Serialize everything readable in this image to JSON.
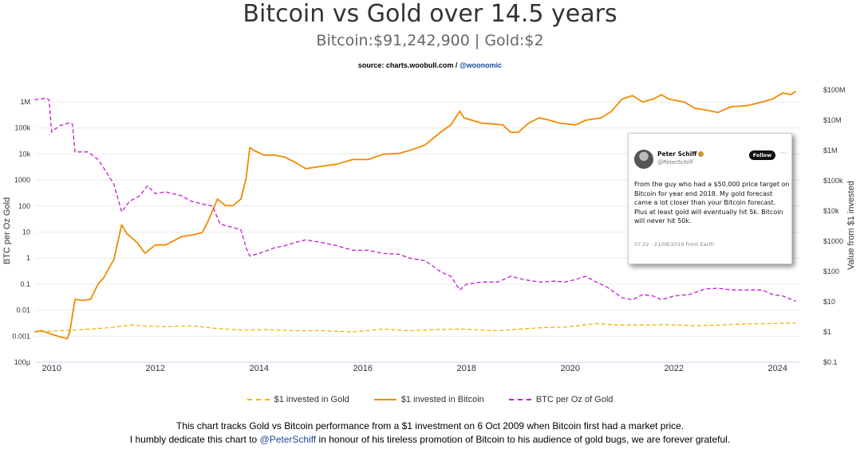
{
  "header": {
    "title": "Bitcoin vs Gold over 14.5 years",
    "subtitle": "Bitcoin:$91,242,900 | Gold:$2",
    "source_prefix": "source: charts.woobull.com / ",
    "source_handle": "@woonomic"
  },
  "chart_data": {
    "type": "line",
    "x_range": [
      2009.75,
      2024.55
    ],
    "x_ticks": [
      2010,
      2012,
      2014,
      2016,
      2018,
      2020,
      2022,
      2024
    ],
    "left_axis": {
      "label": "BTC per Oz Gold",
      "scale": "log",
      "range": [
        0.0001,
        1000000
      ],
      "ticks": [
        {
          "v": 1000000,
          "label": "1M"
        },
        {
          "v": 100000,
          "label": "100k"
        },
        {
          "v": 10000,
          "label": "10k"
        },
        {
          "v": 1000,
          "label": "1000"
        },
        {
          "v": 100,
          "label": "100"
        },
        {
          "v": 10,
          "label": "10"
        },
        {
          "v": 1,
          "label": "1"
        },
        {
          "v": 0.1,
          "label": "0.1"
        },
        {
          "v": 0.01,
          "label": "0.01"
        },
        {
          "v": 0.001,
          "label": "0.001"
        },
        {
          "v": 0.0001,
          "label": "100µ"
        }
      ]
    },
    "right_axis": {
      "label": "Value from $1 invested",
      "scale": "log",
      "range": [
        0.1,
        100000000
      ],
      "ticks": [
        {
          "v": 100000000,
          "label": "$100M"
        },
        {
          "v": 10000000,
          "label": "$10M"
        },
        {
          "v": 1000000,
          "label": "$1M"
        },
        {
          "v": 100000,
          "label": "$100k"
        },
        {
          "v": 10000,
          "label": "$10k"
        },
        {
          "v": 1000,
          "label": "$1000"
        },
        {
          "v": 100,
          "label": "$100"
        },
        {
          "v": 10,
          "label": "$10"
        },
        {
          "v": 1,
          "label": "$1"
        },
        {
          "v": 0.1,
          "label": "$0.1"
        }
      ]
    },
    "series": [
      {
        "name": "$1 invested in Gold",
        "axis": "right",
        "color": "#f0b400",
        "points": [
          [
            2009.77,
            1.0
          ],
          [
            2010.0,
            1.05
          ],
          [
            2010.5,
            1.15
          ],
          [
            2011.0,
            1.3
          ],
          [
            2011.3,
            1.45
          ],
          [
            2011.65,
            1.7
          ],
          [
            2011.9,
            1.55
          ],
          [
            2012.3,
            1.5
          ],
          [
            2012.8,
            1.6
          ],
          [
            2013.3,
            1.3
          ],
          [
            2013.8,
            1.15
          ],
          [
            2014.2,
            1.2
          ],
          [
            2014.8,
            1.1
          ],
          [
            2015.3,
            1.1
          ],
          [
            2015.9,
            1.0
          ],
          [
            2016.5,
            1.25
          ],
          [
            2017.0,
            1.1
          ],
          [
            2017.5,
            1.2
          ],
          [
            2018.0,
            1.25
          ],
          [
            2018.7,
            1.1
          ],
          [
            2019.0,
            1.2
          ],
          [
            2019.6,
            1.4
          ],
          [
            2020.0,
            1.45
          ],
          [
            2020.6,
            1.9
          ],
          [
            2021.0,
            1.7
          ],
          [
            2021.5,
            1.7
          ],
          [
            2022.0,
            1.75
          ],
          [
            2022.5,
            1.6
          ],
          [
            2023.0,
            1.7
          ],
          [
            2023.5,
            1.85
          ],
          [
            2024.0,
            1.9
          ],
          [
            2024.45,
            2.0
          ]
        ]
      },
      {
        "name": "$1 invested in Bitcoin",
        "axis": "right",
        "color": "#f08a00",
        "points": [
          [
            2009.77,
            1.0
          ],
          [
            2009.9,
            1.1
          ],
          [
            2010.05,
            0.9
          ],
          [
            2010.25,
            0.7
          ],
          [
            2010.4,
            0.6
          ],
          [
            2010.45,
            1.0
          ],
          [
            2010.55,
            12
          ],
          [
            2010.7,
            11
          ],
          [
            2010.85,
            12
          ],
          [
            2011.0,
            40
          ],
          [
            2011.1,
            60
          ],
          [
            2011.3,
            250
          ],
          [
            2011.45,
            3500
          ],
          [
            2011.55,
            1800
          ],
          [
            2011.75,
            900
          ],
          [
            2011.9,
            400
          ],
          [
            2012.1,
            750
          ],
          [
            2012.3,
            750
          ],
          [
            2012.6,
            1400
          ],
          [
            2012.8,
            1600
          ],
          [
            2013.0,
            1900
          ],
          [
            2013.1,
            4000
          ],
          [
            2013.3,
            25000
          ],
          [
            2013.45,
            15000
          ],
          [
            2013.6,
            15000
          ],
          [
            2013.75,
            25000
          ],
          [
            2013.85,
            120000
          ],
          [
            2013.92,
            1250000
          ],
          [
            2014.0,
            1000000
          ],
          [
            2014.2,
            700000
          ],
          [
            2014.4,
            700000
          ],
          [
            2014.6,
            600000
          ],
          [
            2014.8,
            400000
          ],
          [
            2015.0,
            250000
          ],
          [
            2015.3,
            300000
          ],
          [
            2015.6,
            350000
          ],
          [
            2015.9,
            500000
          ],
          [
            2016.2,
            500000
          ],
          [
            2016.5,
            750000
          ],
          [
            2016.8,
            800000
          ],
          [
            2017.0,
            1000000
          ],
          [
            2017.3,
            1500000
          ],
          [
            2017.6,
            4000000
          ],
          [
            2017.8,
            7000000
          ],
          [
            2017.97,
            20000000
          ],
          [
            2018.05,
            12000000
          ],
          [
            2018.2,
            10000000
          ],
          [
            2018.4,
            8000000
          ],
          [
            2018.6,
            7500000
          ],
          [
            2018.8,
            7000000
          ],
          [
            2018.95,
            4000000
          ],
          [
            2019.1,
            4000000
          ],
          [
            2019.3,
            8000000
          ],
          [
            2019.5,
            12000000
          ],
          [
            2019.7,
            10000000
          ],
          [
            2019.9,
            8000000
          ],
          [
            2020.2,
            7000000
          ],
          [
            2020.4,
            10000000
          ],
          [
            2020.7,
            12000000
          ],
          [
            2020.9,
            20000000
          ],
          [
            2021.1,
            50000000
          ],
          [
            2021.3,
            65000000
          ],
          [
            2021.5,
            40000000
          ],
          [
            2021.7,
            50000000
          ],
          [
            2021.86,
            70000000
          ],
          [
            2022.0,
            50000000
          ],
          [
            2022.3,
            40000000
          ],
          [
            2022.5,
            25000000
          ],
          [
            2022.7,
            22000000
          ],
          [
            2022.95,
            18000000
          ],
          [
            2023.2,
            28000000
          ],
          [
            2023.5,
            30000000
          ],
          [
            2023.8,
            40000000
          ],
          [
            2024.0,
            50000000
          ],
          [
            2024.2,
            80000000
          ],
          [
            2024.35,
            70000000
          ],
          [
            2024.45,
            91000000
          ]
        ]
      },
      {
        "name": "BTC per Oz of Gold",
        "axis": "left",
        "color": "#c21ad0",
        "points": [
          [
            2009.77,
            1200000
          ],
          [
            2009.9,
            1300000
          ],
          [
            2010.0,
            1400000
          ],
          [
            2010.05,
            1200000
          ],
          [
            2010.1,
            70000
          ],
          [
            2010.25,
            120000
          ],
          [
            2010.45,
            160000
          ],
          [
            2010.5,
            140000
          ],
          [
            2010.55,
            12000
          ],
          [
            2010.8,
            12000
          ],
          [
            2011.0,
            6000
          ],
          [
            2011.1,
            3000
          ],
          [
            2011.3,
            700
          ],
          [
            2011.45,
            60
          ],
          [
            2011.6,
            150
          ],
          [
            2011.8,
            250
          ],
          [
            2011.95,
            600
          ],
          [
            2012.1,
            300
          ],
          [
            2012.3,
            350
          ],
          [
            2012.6,
            250
          ],
          [
            2012.8,
            150
          ],
          [
            2013.0,
            120
          ],
          [
            2013.2,
            100
          ],
          [
            2013.35,
            20
          ],
          [
            2013.6,
            15
          ],
          [
            2013.75,
            12
          ],
          [
            2013.85,
            2.5
          ],
          [
            2013.92,
            1.2
          ],
          [
            2014.1,
            1.5
          ],
          [
            2014.4,
            2.5
          ],
          [
            2014.6,
            3
          ],
          [
            2014.8,
            4
          ],
          [
            2015.0,
            5
          ],
          [
            2015.3,
            4
          ],
          [
            2015.6,
            3
          ],
          [
            2015.9,
            2
          ],
          [
            2016.2,
            2
          ],
          [
            2016.5,
            1.5
          ],
          [
            2016.8,
            1.4
          ],
          [
            2017.0,
            1
          ],
          [
            2017.3,
            0.8
          ],
          [
            2017.6,
            0.3
          ],
          [
            2017.8,
            0.2
          ],
          [
            2017.97,
            0.06
          ],
          [
            2018.1,
            0.1
          ],
          [
            2018.4,
            0.12
          ],
          [
            2018.7,
            0.12
          ],
          [
            2018.95,
            0.2
          ],
          [
            2019.2,
            0.15
          ],
          [
            2019.5,
            0.12
          ],
          [
            2019.8,
            0.13
          ],
          [
            2020.0,
            0.12
          ],
          [
            2020.2,
            0.15
          ],
          [
            2020.4,
            0.2
          ],
          [
            2020.6,
            0.12
          ],
          [
            2020.8,
            0.08
          ],
          [
            2021.1,
            0.03
          ],
          [
            2021.3,
            0.025
          ],
          [
            2021.5,
            0.04
          ],
          [
            2021.7,
            0.035
          ],
          [
            2021.86,
            0.025
          ],
          [
            2022.1,
            0.035
          ],
          [
            2022.4,
            0.04
          ],
          [
            2022.7,
            0.065
          ],
          [
            2022.95,
            0.07
          ],
          [
            2023.2,
            0.06
          ],
          [
            2023.5,
            0.06
          ],
          [
            2023.8,
            0.06
          ],
          [
            2024.0,
            0.04
          ],
          [
            2024.2,
            0.035
          ],
          [
            2024.45,
            0.022
          ]
        ]
      }
    ]
  },
  "tweet": {
    "name": "Peter Schiff",
    "handle": "@PeterSchiff",
    "follow_label": "Follow",
    "more": "···",
    "text": "From the guy who had a $50,000  price target on Bitcoin for year end 2018.  My gold forecast came a lot closer than your Bitcoin forecast.  Plus at least gold will eventually hit 5k.  Bitcoin will never hit 50k.",
    "meta": "07:22 · 21/08/2019 From Earth"
  },
  "footer": {
    "line1": "This chart tracks Gold vs Bitcoin performance from a $1 investment on 6 Oct 2009 when Bitcoin first had a market price.",
    "line2_before": "I humbly dedicate this chart to ",
    "line2_handle": "@PeterSchiff",
    "line2_after": " in honour of his tireless promotion of Bitcoin to his audience of gold bugs, we are forever grateful."
  }
}
